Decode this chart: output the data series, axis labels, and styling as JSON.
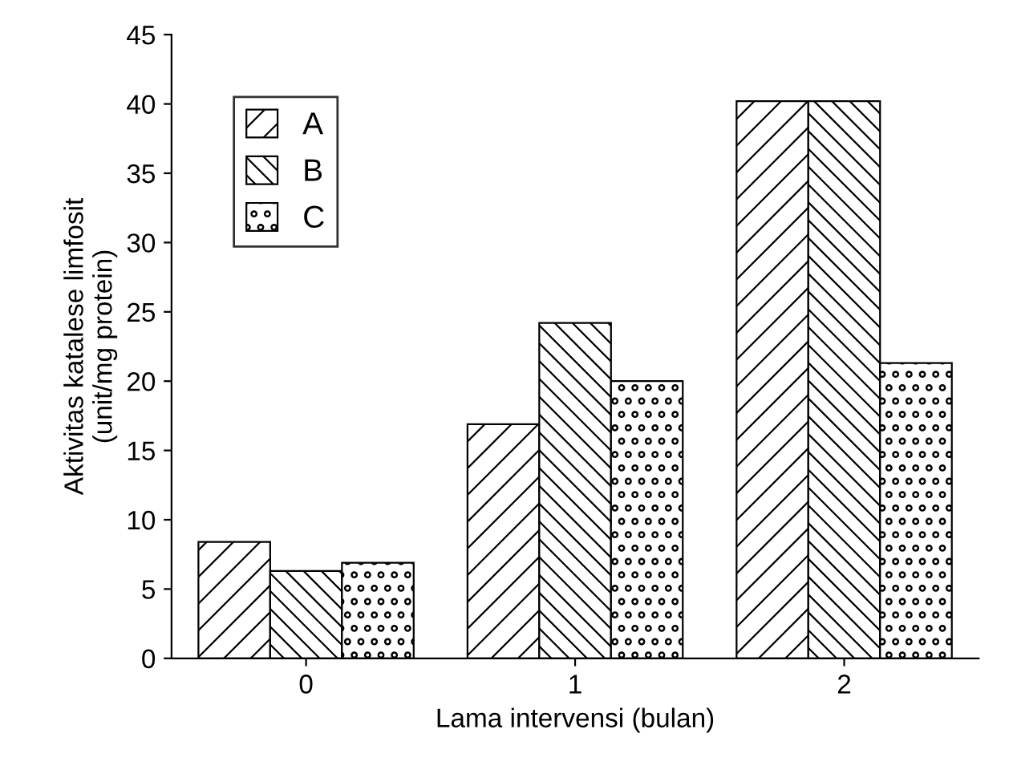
{
  "chart_data": {
    "type": "bar",
    "xlabel": "Lama intervensi (bulan)",
    "ylabel": "Aktivitas katalese limfosit\n(unit/mg protein)",
    "categories": [
      "0",
      "1",
      "2"
    ],
    "series": [
      {
        "name": "A",
        "color": "#000000",
        "values": [
          8.4,
          16.9,
          40.2
        ]
      },
      {
        "name": "B",
        "color": "#000000",
        "values": [
          6.3,
          24.2,
          40.2
        ]
      },
      {
        "name": "C",
        "color": "#000000",
        "values": [
          6.9,
          20.0,
          21.3
        ]
      }
    ],
    "ylim": [
      0,
      45
    ],
    "yticks": [
      0,
      5,
      10,
      15,
      20,
      25,
      30,
      35,
      40,
      45
    ],
    "grid": false,
    "legend": "top left"
  }
}
